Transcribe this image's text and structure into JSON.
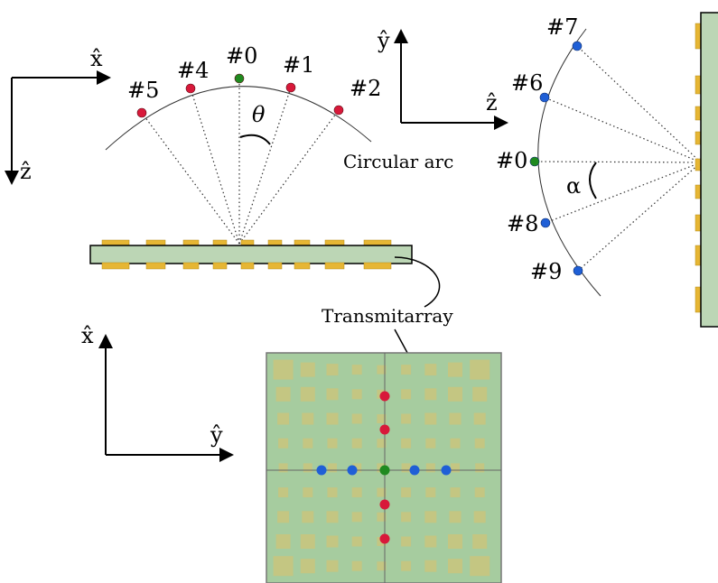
{
  "colors": {
    "substrate": "#bcd6b5",
    "patch": "#e6b634",
    "patch_edge": "#b48a16",
    "array_bg": "#9fc99a",
    "array_cell": "#c9c47c",
    "red": "#d8193a",
    "green": "#1f8a1f",
    "blue": "#1f5fd6"
  },
  "panels": {
    "xz": {
      "axis_x": "x̂",
      "axis_z": "ẑ",
      "arc_label": "Circular arc",
      "angle_label": "θ",
      "points": [
        {
          "label": "#5",
          "color": "red"
        },
        {
          "label": "#4",
          "color": "red"
        },
        {
          "label": "#0",
          "color": "green"
        },
        {
          "label": "#1",
          "color": "red"
        },
        {
          "label": "#2",
          "color": "red"
        }
      ]
    },
    "yz": {
      "axis_y": "ŷ",
      "axis_z": "ẑ",
      "angle_label": "α",
      "points": [
        {
          "label": "#7",
          "color": "blue"
        },
        {
          "label": "#6",
          "color": "blue"
        },
        {
          "label": "#0",
          "color": "green"
        },
        {
          "label": "#8",
          "color": "blue"
        },
        {
          "label": "#9",
          "color": "blue"
        }
      ]
    },
    "xy": {
      "axis_x": "x̂",
      "axis_y": "ŷ",
      "callout": "Transmitarray"
    }
  }
}
